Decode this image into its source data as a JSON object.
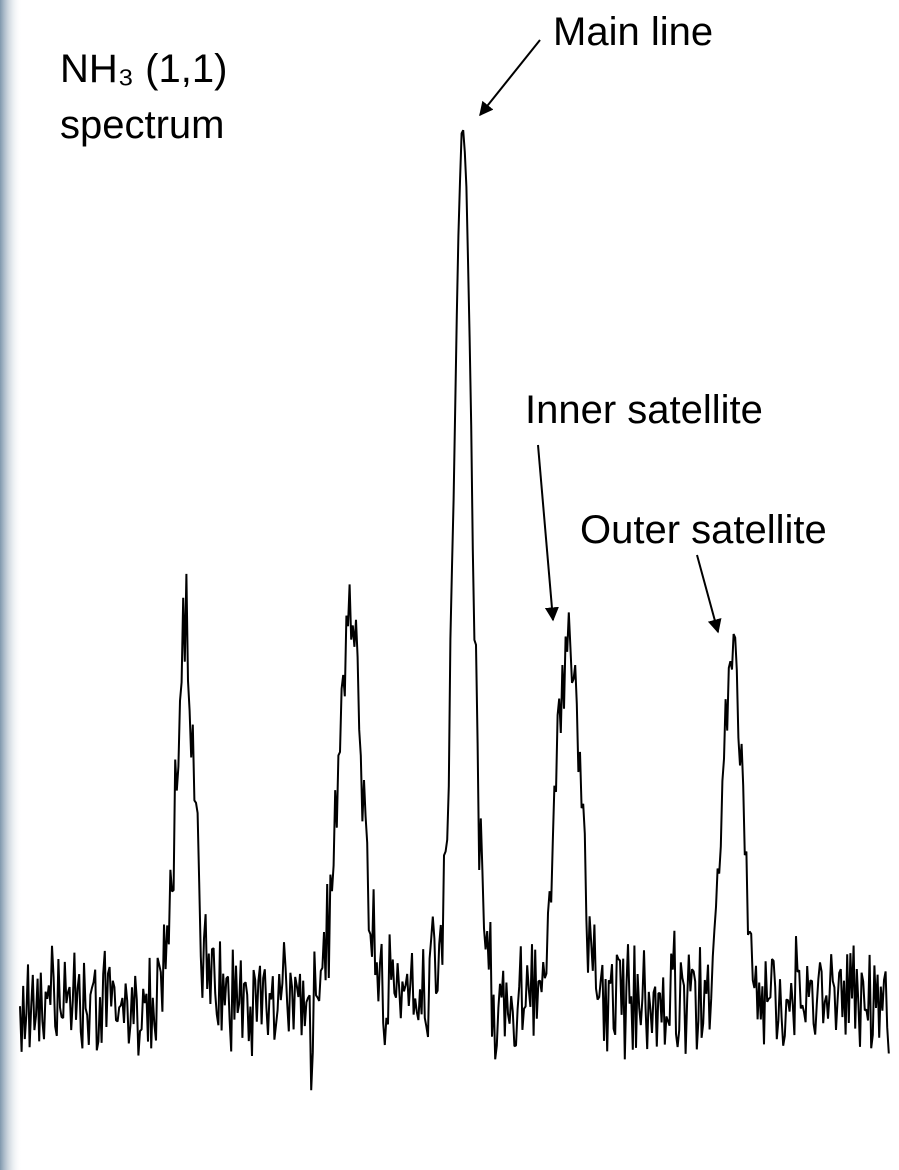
{
  "title": {
    "line1": "NH₃ (1,1)",
    "line2": "spectrum"
  },
  "annotations": {
    "main": "Main line",
    "inner": "Inner satellite",
    "outer": "Outer satellite"
  }
}
